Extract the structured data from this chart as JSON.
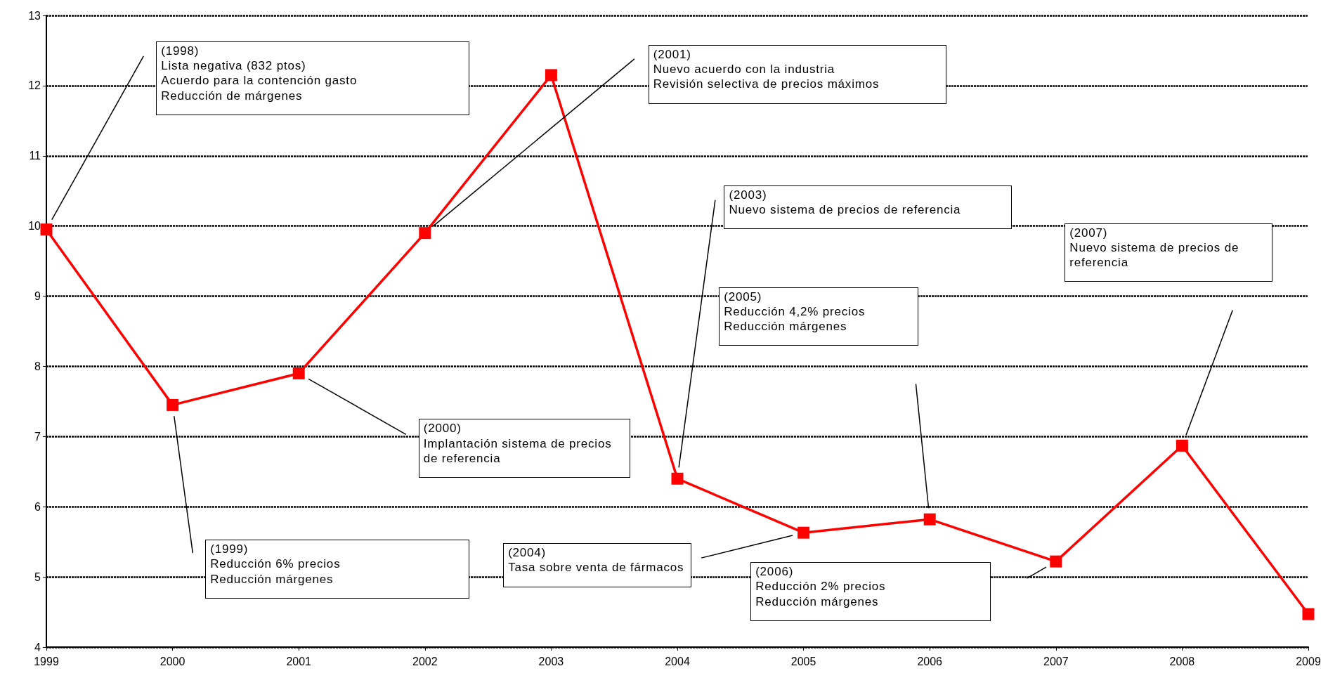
{
  "chart_data": {
    "type": "line",
    "x": [
      1999,
      2000,
      2001,
      2002,
      2003,
      2004,
      2005,
      2006,
      2007,
      2008,
      2009
    ],
    "series": [
      {
        "color": "#ff0000",
        "values": [
          9.95,
          7.45,
          7.9,
          9.9,
          12.15,
          6.4,
          5.63,
          5.82,
          5.22,
          6.87,
          4.47
        ]
      }
    ],
    "xlim": [
      1999,
      2009
    ],
    "xticks": [
      1999,
      2000,
      2001,
      2002,
      2003,
      2004,
      2005,
      2006,
      2007,
      2008,
      2009
    ],
    "ylim": [
      4,
      13
    ],
    "yticks": [
      4,
      5,
      6,
      7,
      8,
      9,
      10,
      11,
      12,
      13
    ],
    "grid": "y",
    "marker": "square",
    "line_style": "solid",
    "annotations": [
      "(1998)\nLista negativa (832 ptos)\nAcuerdo para la contención gasto\nReducción de márgenes",
      "(1999)\nReducción 6% precios\nReducción márgenes",
      "(2000)\nImplantación sistema de precios de referencia",
      "(2001)\nNuevo acuerdo con la industria\nRevisión selectiva de precios máximos",
      "(2003)\nNuevo sistema de precios de referencia",
      "(2004)\nTasa sobre venta de fármacos",
      "(2005)\nReducción 4,2% precios\nReducción márgenes",
      "(2006)\nReducción 2% precios\nReducción márgenes",
      "(2007)\nNuevo sistema de precios de referencia"
    ]
  }
}
